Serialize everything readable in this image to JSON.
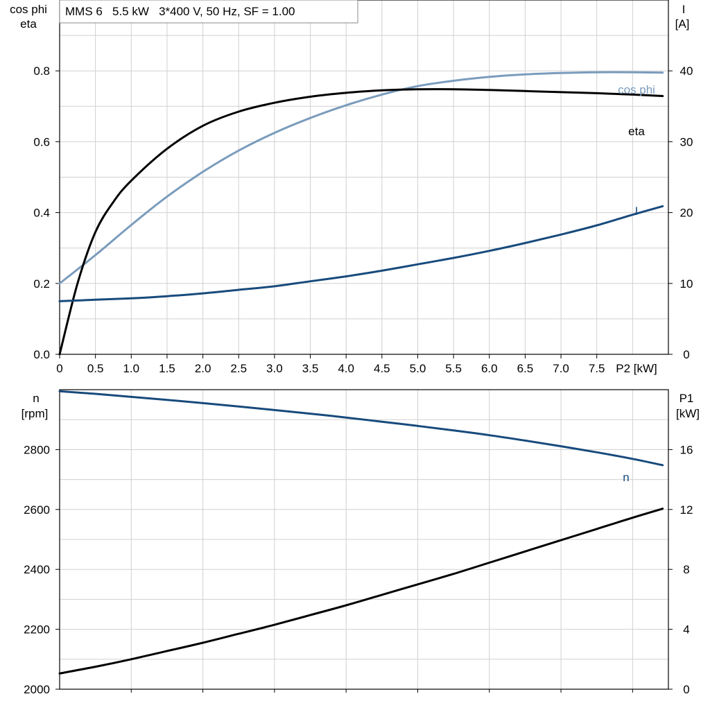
{
  "chart_data": [
    {
      "type": "line",
      "title": "MMS 6   5.5 kW   3*400 V, 50 Hz, SF = 1.00",
      "xlabel": "P2 [kW]",
      "xlim": [
        0,
        8.5
      ],
      "x_ticks": [
        "0",
        "0.5",
        "1.0",
        "1.5",
        "2.0",
        "2.5",
        "3.0",
        "3.5",
        "4.0",
        "4.5",
        "5.0",
        "5.5",
        "6.0",
        "6.5",
        "7.0",
        "7.5"
      ],
      "x_tick_values": [
        0,
        0.5,
        1.0,
        1.5,
        2.0,
        2.5,
        3.0,
        3.5,
        4.0,
        4.5,
        5.0,
        5.5,
        6.0,
        6.5,
        7.0,
        7.5
      ],
      "ylabel_left": [
        "cos phi",
        "eta"
      ],
      "ylim_left": [
        0,
        1.0
      ],
      "y_ticks_left": [
        "0.0",
        "0.2",
        "0.4",
        "0.6",
        "0.8"
      ],
      "y_tick_values_left": [
        0,
        0.2,
        0.4,
        0.6,
        0.8
      ],
      "ylabel_right": [
        "I",
        "[A]"
      ],
      "ylim_right": [
        0,
        50
      ],
      "y_ticks_right": [
        "0",
        "10",
        "20",
        "30",
        "40"
      ],
      "y_tick_values_right": [
        0,
        10,
        20,
        30,
        40
      ],
      "grid": true,
      "series": [
        {
          "name": "cos phi",
          "axis": "left",
          "color": "#7a9cbc",
          "x": [
            0,
            0.5,
            1.0,
            1.5,
            2.0,
            2.5,
            3.0,
            3.5,
            4.0,
            4.5,
            5.0,
            5.5,
            6.0,
            6.5,
            7.0,
            7.5,
            8.0,
            8.42
          ],
          "y": [
            0.2,
            0.28,
            0.365,
            0.445,
            0.515,
            0.575,
            0.625,
            0.667,
            0.703,
            0.733,
            0.757,
            0.772,
            0.783,
            0.79,
            0.794,
            0.796,
            0.796,
            0.795
          ]
        },
        {
          "name": "eta",
          "axis": "left",
          "color": "#000000",
          "x": [
            0,
            0.25,
            0.5,
            0.75,
            1.0,
            1.5,
            2.0,
            2.5,
            3.0,
            3.5,
            4.0,
            4.5,
            5.0,
            5.5,
            6.0,
            6.5,
            7.0,
            7.5,
            8.0,
            8.42
          ],
          "y": [
            0.0,
            0.2,
            0.345,
            0.43,
            0.49,
            0.58,
            0.645,
            0.685,
            0.71,
            0.727,
            0.738,
            0.745,
            0.748,
            0.748,
            0.746,
            0.743,
            0.74,
            0.737,
            0.733,
            0.729
          ]
        },
        {
          "name": "I",
          "axis": "right",
          "color": "#174a7c",
          "x": [
            0,
            0.5,
            1.0,
            1.5,
            2.0,
            2.5,
            3.0,
            3.5,
            4.0,
            4.5,
            5.0,
            5.5,
            6.0,
            6.5,
            7.0,
            7.5,
            8.0,
            8.42
          ],
          "y": [
            7.5,
            7.7,
            7.9,
            8.2,
            8.6,
            9.1,
            9.6,
            10.3,
            11.0,
            11.8,
            12.7,
            13.6,
            14.6,
            15.7,
            16.9,
            18.2,
            19.7,
            20.9
          ]
        }
      ],
      "curve_labels": {
        "cos_phi": "cos phi",
        "eta": "eta",
        "I": "I"
      }
    },
    {
      "type": "line",
      "xlim": [
        0,
        8.5
      ],
      "ylabel_left": [
        "n",
        "[rpm]"
      ],
      "ylim_left": [
        2000,
        3000
      ],
      "y_ticks_left": [
        "2000",
        "2200",
        "2400",
        "2600",
        "2800"
      ],
      "y_tick_values_left": [
        2000,
        2200,
        2400,
        2600,
        2800
      ],
      "ylabel_right": [
        "P1",
        "[kW]"
      ],
      "ylim_right": [
        0,
        20
      ],
      "y_ticks_right": [
        "0",
        "4",
        "8",
        "12",
        "16"
      ],
      "y_tick_values_right": [
        0,
        4,
        8,
        12,
        16
      ],
      "grid": true,
      "series": [
        {
          "name": "n",
          "axis": "left",
          "color": "#174a7c",
          "x": [
            0,
            0.5,
            1.0,
            1.5,
            2.0,
            2.5,
            3.0,
            3.5,
            4.0,
            4.5,
            5.0,
            5.5,
            6.0,
            6.5,
            7.0,
            7.5,
            8.0,
            8.42
          ],
          "y": [
            2995,
            2986,
            2976,
            2966,
            2955,
            2944,
            2932,
            2920,
            2907,
            2893,
            2879,
            2864,
            2848,
            2830,
            2811,
            2791,
            2769,
            2748
          ]
        },
        {
          "axis": "right",
          "color": "#000000",
          "x": [
            0,
            0.5,
            1.0,
            1.5,
            2.0,
            2.5,
            3.0,
            3.5,
            4.0,
            4.5,
            5.0,
            5.5,
            6.0,
            6.5,
            7.0,
            7.5,
            8.0,
            8.42
          ],
          "y": [
            1.05,
            1.5,
            2.0,
            2.55,
            3.1,
            3.7,
            4.3,
            4.95,
            5.6,
            6.3,
            7.0,
            7.7,
            8.45,
            9.2,
            9.95,
            10.7,
            11.45,
            12.05
          ]
        }
      ],
      "curve_labels": {
        "n": "n"
      }
    }
  ]
}
